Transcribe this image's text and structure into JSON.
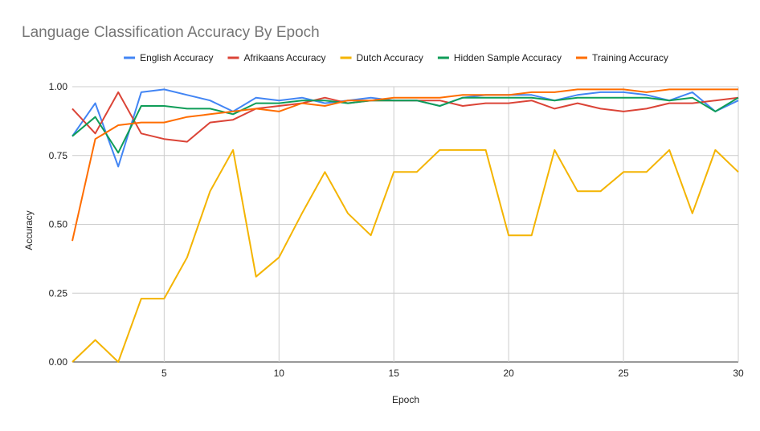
{
  "chart_data": {
    "type": "line",
    "title": "Language Classification Accuracy By Epoch",
    "xlabel": "Epoch",
    "ylabel": "Accuracy",
    "xlim": [
      1,
      30
    ],
    "ylim": [
      0,
      1
    ],
    "x_ticks": [
      5,
      10,
      15,
      20,
      25,
      30
    ],
    "y_ticks": [
      0,
      0.25,
      0.5,
      0.75,
      1.0
    ],
    "x_tick_labels": [
      "5",
      "10",
      "15",
      "20",
      "25",
      "30"
    ],
    "y_tick_labels": [
      "0.00",
      "0.25",
      "0.50",
      "0.75",
      "1.00"
    ],
    "grid": true,
    "legend_position": "top",
    "x": [
      1,
      2,
      3,
      4,
      5,
      6,
      7,
      8,
      9,
      10,
      11,
      12,
      13,
      14,
      15,
      16,
      17,
      18,
      19,
      20,
      21,
      22,
      23,
      24,
      25,
      26,
      27,
      28,
      29,
      30
    ],
    "series": [
      {
        "name": "English Accuracy",
        "color": "#4285f4",
        "values": [
          0.82,
          0.94,
          0.71,
          0.98,
          0.99,
          0.97,
          0.95,
          0.91,
          0.96,
          0.95,
          0.96,
          0.94,
          0.95,
          0.96,
          0.95,
          0.95,
          0.93,
          0.96,
          0.97,
          0.97,
          0.97,
          0.95,
          0.97,
          0.98,
          0.98,
          0.97,
          0.95,
          0.98,
          0.91,
          0.95
        ]
      },
      {
        "name": "Afrikaans Accuracy",
        "color": "#db4437",
        "values": [
          0.92,
          0.83,
          0.98,
          0.83,
          0.81,
          0.8,
          0.87,
          0.88,
          0.92,
          0.93,
          0.94,
          0.96,
          0.94,
          0.95,
          0.95,
          0.95,
          0.95,
          0.93,
          0.94,
          0.94,
          0.95,
          0.92,
          0.94,
          0.92,
          0.91,
          0.92,
          0.94,
          0.94,
          0.95,
          0.96
        ]
      },
      {
        "name": "Dutch Accuracy",
        "color": "#f4b400",
        "values": [
          0.0,
          0.08,
          0.0,
          0.23,
          0.23,
          0.38,
          0.62,
          0.77,
          0.31,
          0.38,
          0.54,
          0.69,
          0.54,
          0.46,
          0.69,
          0.69,
          0.77,
          0.77,
          0.77,
          0.46,
          0.46,
          0.77,
          0.62,
          0.62,
          0.69,
          0.69,
          0.77,
          0.54,
          0.77,
          0.69
        ]
      },
      {
        "name": "Hidden Sample Accuracy",
        "color": "#0f9d58",
        "values": [
          0.82,
          0.89,
          0.76,
          0.93,
          0.93,
          0.92,
          0.92,
          0.9,
          0.94,
          0.94,
          0.95,
          0.95,
          0.94,
          0.95,
          0.95,
          0.95,
          0.93,
          0.96,
          0.96,
          0.96,
          0.96,
          0.95,
          0.96,
          0.96,
          0.96,
          0.96,
          0.95,
          0.96,
          0.91,
          0.96
        ]
      },
      {
        "name": "Training Accuracy",
        "color": "#ff6d00",
        "values": [
          0.44,
          0.81,
          0.86,
          0.87,
          0.87,
          0.89,
          0.9,
          0.91,
          0.92,
          0.91,
          0.94,
          0.93,
          0.95,
          0.95,
          0.96,
          0.96,
          0.96,
          0.97,
          0.97,
          0.97,
          0.98,
          0.98,
          0.99,
          0.99,
          0.99,
          0.98,
          0.99,
          0.99,
          0.99,
          0.99
        ]
      }
    ]
  },
  "colors": {
    "grid": "#cccccc",
    "axis_text": "#222222",
    "title": "#757575",
    "legend_text": "#222222"
  }
}
